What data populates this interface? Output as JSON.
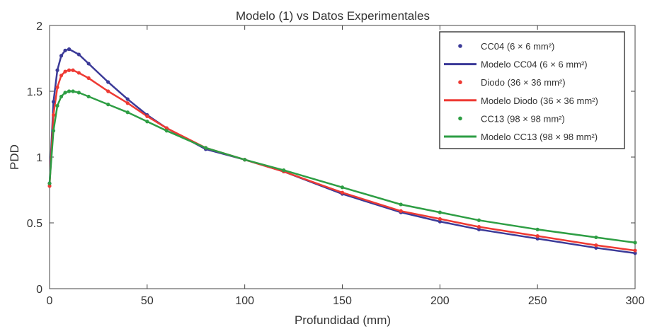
{
  "chart_data": {
    "type": "line",
    "title": "Modelo (1) vs Datos Experimentales",
    "xlabel": "Profundidad (mm)",
    "ylabel": "PDD",
    "xlim": [
      0,
      300
    ],
    "ylim": [
      0,
      2
    ],
    "x_ticks": [
      "0",
      "50",
      "100",
      "150",
      "200",
      "250",
      "300"
    ],
    "y_ticks": [
      "0",
      "0.5",
      "1",
      "1.5",
      "2"
    ],
    "grid": false,
    "legend_position": "top-right",
    "series": [
      {
        "name": "CC04 (6 × 6 mm²)",
        "kind": "points",
        "color": "#3b3a98",
        "x": [
          0,
          2,
          4,
          6,
          8,
          10,
          15,
          20,
          30,
          40,
          50,
          60,
          80,
          100,
          120,
          150,
          180,
          200,
          220,
          250,
          280,
          300
        ],
        "y": [
          0.8,
          1.42,
          1.66,
          1.77,
          1.81,
          1.82,
          1.78,
          1.71,
          1.57,
          1.44,
          1.32,
          1.22,
          1.06,
          0.98,
          0.89,
          0.72,
          0.58,
          0.51,
          0.45,
          0.38,
          0.31,
          0.27
        ]
      },
      {
        "name": "Modelo CC04 (6 × 6 mm²)",
        "kind": "line",
        "color": "#3b3a98",
        "x": [
          0,
          2,
          4,
          6,
          8,
          10,
          15,
          20,
          30,
          40,
          50,
          60,
          80,
          100,
          120,
          150,
          180,
          200,
          220,
          250,
          280,
          300
        ],
        "y": [
          0.8,
          1.42,
          1.66,
          1.77,
          1.81,
          1.82,
          1.78,
          1.71,
          1.57,
          1.44,
          1.32,
          1.22,
          1.06,
          0.98,
          0.89,
          0.72,
          0.58,
          0.51,
          0.45,
          0.38,
          0.31,
          0.27
        ]
      },
      {
        "name": "Diodo (36 × 36 mm²)",
        "kind": "points",
        "color": "#ee3a33",
        "x": [
          0,
          2,
          4,
          6,
          8,
          10,
          12,
          15,
          20,
          30,
          40,
          50,
          60,
          80,
          100,
          120,
          150,
          180,
          200,
          220,
          250,
          280,
          300
        ],
        "y": [
          0.78,
          1.32,
          1.53,
          1.62,
          1.65,
          1.66,
          1.66,
          1.64,
          1.6,
          1.5,
          1.41,
          1.31,
          1.22,
          1.07,
          0.98,
          0.89,
          0.73,
          0.59,
          0.53,
          0.47,
          0.4,
          0.33,
          0.29
        ]
      },
      {
        "name": "Modelo Diodo (36 × 36 mm²)",
        "kind": "line",
        "color": "#ee3a33",
        "x": [
          0,
          2,
          4,
          6,
          8,
          10,
          12,
          15,
          20,
          30,
          40,
          50,
          60,
          80,
          100,
          120,
          150,
          180,
          200,
          220,
          250,
          280,
          300
        ],
        "y": [
          0.78,
          1.32,
          1.53,
          1.62,
          1.65,
          1.66,
          1.66,
          1.64,
          1.6,
          1.5,
          1.41,
          1.31,
          1.22,
          1.07,
          0.98,
          0.89,
          0.73,
          0.59,
          0.53,
          0.47,
          0.4,
          0.33,
          0.29
        ]
      },
      {
        "name": "CC13 (98 × 98 mm²)",
        "kind": "points",
        "color": "#2e9e44",
        "x": [
          0,
          2,
          4,
          6,
          8,
          10,
          12,
          15,
          20,
          30,
          40,
          50,
          60,
          80,
          100,
          120,
          150,
          180,
          200,
          220,
          250,
          280,
          300
        ],
        "y": [
          0.8,
          1.2,
          1.39,
          1.46,
          1.49,
          1.5,
          1.5,
          1.49,
          1.46,
          1.4,
          1.34,
          1.27,
          1.2,
          1.07,
          0.98,
          0.9,
          0.77,
          0.64,
          0.58,
          0.52,
          0.45,
          0.39,
          0.35
        ]
      },
      {
        "name": "Modelo CC13 (98 × 98 mm²)",
        "kind": "line",
        "color": "#2e9e44",
        "x": [
          0,
          2,
          4,
          6,
          8,
          10,
          12,
          15,
          20,
          30,
          40,
          50,
          60,
          80,
          100,
          120,
          150,
          180,
          200,
          220,
          250,
          280,
          300
        ],
        "y": [
          0.8,
          1.2,
          1.39,
          1.46,
          1.49,
          1.5,
          1.5,
          1.49,
          1.46,
          1.4,
          1.34,
          1.27,
          1.2,
          1.07,
          0.98,
          0.9,
          0.77,
          0.64,
          0.58,
          0.52,
          0.45,
          0.39,
          0.35
        ]
      }
    ]
  }
}
